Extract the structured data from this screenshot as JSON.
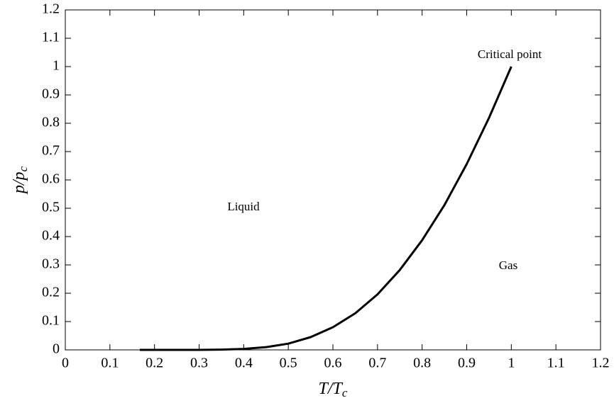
{
  "chart_data": {
    "type": "line",
    "xlabel": "T/Tc",
    "ylabel": "p/pc",
    "x": [
      0.167,
      0.2,
      0.25,
      0.3,
      0.35,
      0.4,
      0.45,
      0.5,
      0.55,
      0.6,
      0.65,
      0.7,
      0.75,
      0.8,
      0.85,
      0.9,
      0.95,
      1.0
    ],
    "values": [
      0.0,
      0.0,
      0.0,
      0.0001,
      0.0009,
      0.0033,
      0.0096,
      0.022,
      0.045,
      0.08,
      0.129,
      0.196,
      0.282,
      0.387,
      0.511,
      0.656,
      0.819,
      1.0
    ],
    "color": "#000000",
    "xlim": [
      0,
      1.2
    ],
    "ylim": [
      0,
      1.2
    ],
    "xticks": [
      0,
      0.1,
      0.2,
      0.3,
      0.4,
      0.5,
      0.6,
      0.7,
      0.8,
      0.9,
      1,
      1.1,
      1.2
    ],
    "yticks": [
      0,
      0.1,
      0.2,
      0.3,
      0.4,
      0.5,
      0.6,
      0.7,
      0.8,
      0.9,
      1,
      1.1,
      1.2
    ],
    "annotations": [
      "Critical point",
      "Liquid",
      "Gas"
    ]
  }
}
